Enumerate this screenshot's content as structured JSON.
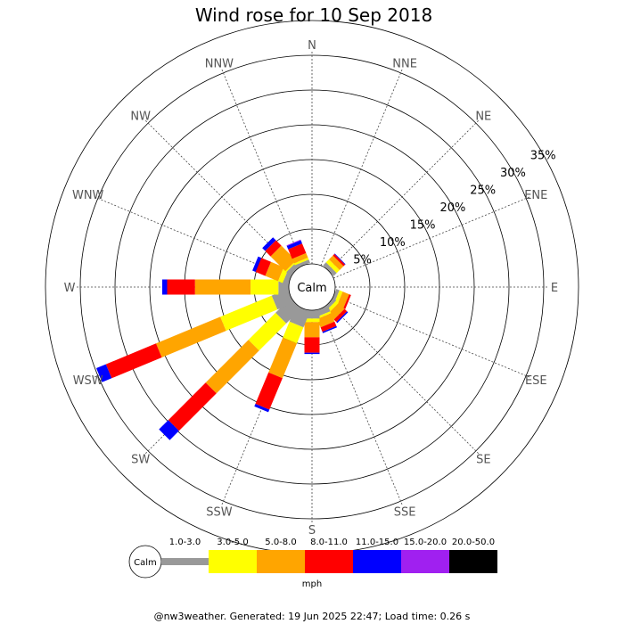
{
  "chart_data": {
    "type": "wind-rose",
    "title": "Wind rose for 10 Sep 2018",
    "directions": [
      "N",
      "NNE",
      "NE",
      "ENE",
      "E",
      "ESE",
      "SE",
      "SSE",
      "S",
      "SSW",
      "SW",
      "WSW",
      "W",
      "WNW",
      "NW",
      "NNW"
    ],
    "ring_labels": [
      "5%",
      "10%",
      "15%",
      "20%",
      "25%",
      "30%",
      "35%"
    ],
    "ring_values": [
      5,
      10,
      15,
      20,
      25,
      30,
      35
    ],
    "calm_label": "Calm",
    "unit": "mph",
    "speed_bins": [
      {
        "label": "1.0-3.0",
        "color": "#999999"
      },
      {
        "label": "3.0-5.0",
        "color": "#ffff00"
      },
      {
        "label": "5.0-8.0",
        "color": "#ffa500"
      },
      {
        "label": "8.0-11.0",
        "color": "#ff0000"
      },
      {
        "label": "11.0-15.0",
        "color": "#0000ff"
      },
      {
        "label": "15.0-20.0",
        "color": "#a020f0"
      },
      {
        "label": "20.0-50.0",
        "color": "#000000"
      }
    ],
    "petals": [
      {
        "direction": "NE",
        "cumulative": [
          0.6,
          1.2,
          2.0,
          2.3,
          2.4,
          2.4,
          2.4
        ]
      },
      {
        "direction": "ESE",
        "cumulative": [
          0.5,
          1.0,
          2.0,
          2.3,
          2.3,
          2.3,
          2.3
        ]
      },
      {
        "direction": "SE",
        "cumulative": [
          0.5,
          1.0,
          2.2,
          2.7,
          2.9,
          2.9,
          2.9
        ]
      },
      {
        "direction": "SSE",
        "cumulative": [
          0.9,
          1.2,
          2.5,
          3.2,
          3.4,
          3.4,
          3.4
        ]
      },
      {
        "direction": "S",
        "cumulative": [
          1.2,
          1.7,
          3.9,
          6.1,
          6.3,
          6.3,
          6.3
        ]
      },
      {
        "direction": "SSW",
        "cumulative": [
          2.5,
          5.0,
          10.4,
          15.3,
          15.7,
          15.7,
          15.7
        ]
      },
      {
        "direction": "SW",
        "cumulative": [
          3.0,
          8.5,
          17.2,
          24.8,
          26.7,
          26.7,
          26.7
        ]
      },
      {
        "direction": "WSW",
        "cumulative": [
          2.5,
          10.5,
          20.5,
          28.3,
          29.8,
          29.8,
          29.8
        ]
      },
      {
        "direction": "W",
        "cumulative": [
          1.5,
          5.5,
          13.5,
          17.5,
          18.2,
          18.2,
          18.2
        ]
      },
      {
        "direction": "WNW",
        "cumulative": [
          0.8,
          1.5,
          3.5,
          5.0,
          5.5,
          5.5,
          5.5
        ]
      },
      {
        "direction": "NW",
        "cumulative": [
          0.8,
          1.0,
          4.0,
          5.1,
          5.7,
          5.7,
          5.7
        ]
      },
      {
        "direction": "NNW",
        "cumulative": [
          0.5,
          0.8,
          1.5,
          3.0,
          3.5,
          3.6,
          3.6
        ]
      }
    ],
    "footer": "@nw3weather. Generated: 19 Jun 2025 22:47; Load time: 0.26 s"
  }
}
